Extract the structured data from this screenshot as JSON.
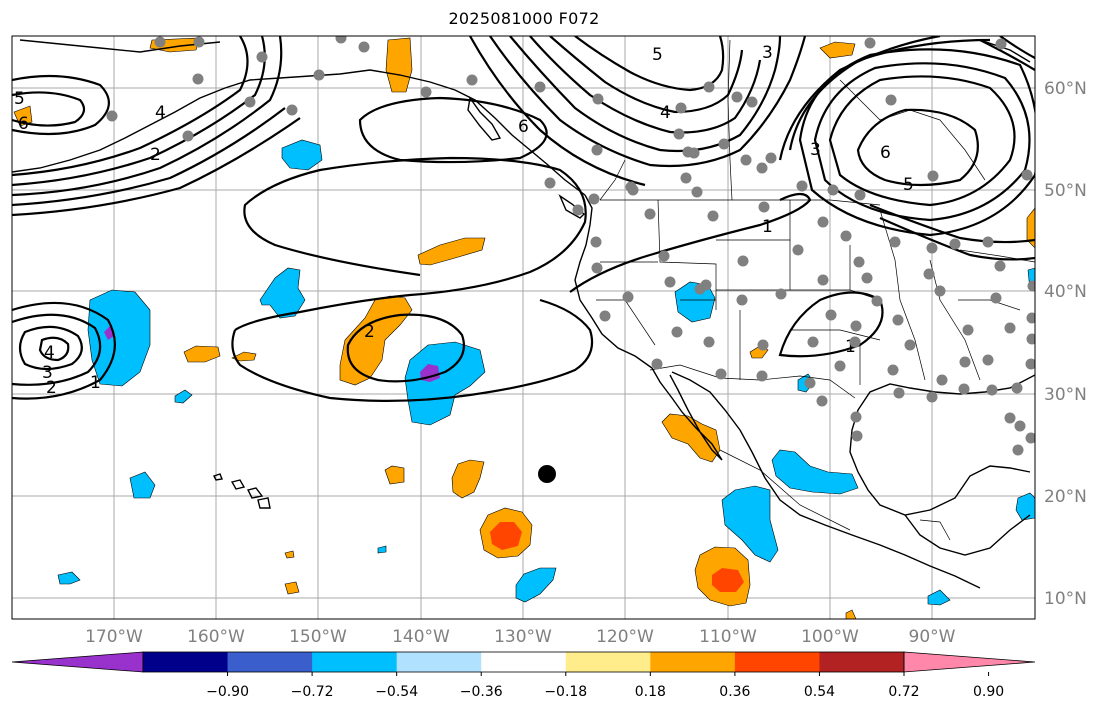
{
  "title": "2025081000 F072",
  "latitude_labels": [
    "60°N",
    "50°N",
    "40°N",
    "30°N",
    "20°N",
    "10°N"
  ],
  "longitude_labels": [
    "170°W",
    "160°W",
    "150°W",
    "140°W",
    "130°W",
    "120°W",
    "110°W",
    "100°W",
    "90°W"
  ],
  "colorbar": {
    "tick_labels": [
      "−0.90",
      "−0.72",
      "−0.54",
      "−0.36",
      "−0.18",
      "0.18",
      "0.36",
      "0.54",
      "0.72",
      "0.90"
    ],
    "colors": [
      "#9932cc",
      "#00008b",
      "#3a5fcd",
      "#00bfff",
      "#b0e2ff",
      "#ffffff",
      "#ffec8b",
      "#ffa500",
      "#ff4500",
      "#b22222",
      "#ff88aa"
    ]
  },
  "contour_labels": [
    "5",
    "6",
    "4",
    "2",
    "5",
    "3",
    "4",
    "6",
    "3",
    "5",
    "6",
    "1",
    "2",
    "1",
    "4",
    "3",
    "2",
    "1"
  ],
  "marker": "black dot near 130°W 22°N"
}
